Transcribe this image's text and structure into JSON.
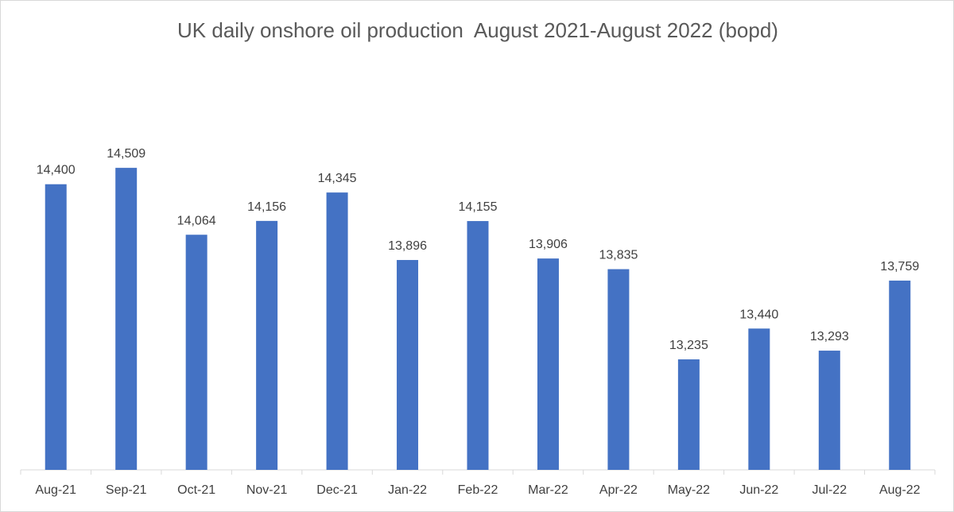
{
  "chart_data": {
    "type": "bar",
    "title": "UK daily onshore oil production  August 2021-August 2022 (bopd)",
    "categories": [
      "Aug-21",
      "Sep-21",
      "Oct-21",
      "Nov-21",
      "Dec-21",
      "Jan-22",
      "Feb-22",
      "Mar-22",
      "Apr-22",
      "May-22",
      "Jun-22",
      "Jul-22",
      "Aug-22"
    ],
    "values": [
      14400,
      14509,
      14064,
      14156,
      14345,
      13896,
      14155,
      13906,
      13835,
      13235,
      13440,
      13293,
      13759
    ],
    "data_labels": [
      "14,400",
      "14,509",
      "14,064",
      "14,156",
      "14,345",
      "13,896",
      "14,155",
      "13,906",
      "13,835",
      "13,235",
      "13,440",
      "13,293",
      "13,759"
    ],
    "xlabel": "",
    "ylabel": "",
    "ylim": [
      12500,
      14700
    ],
    "grid": false,
    "legend": "none",
    "bar_color": "#4472c4",
    "axis_color": "#d9d9d9",
    "text_color": "#404040"
  }
}
